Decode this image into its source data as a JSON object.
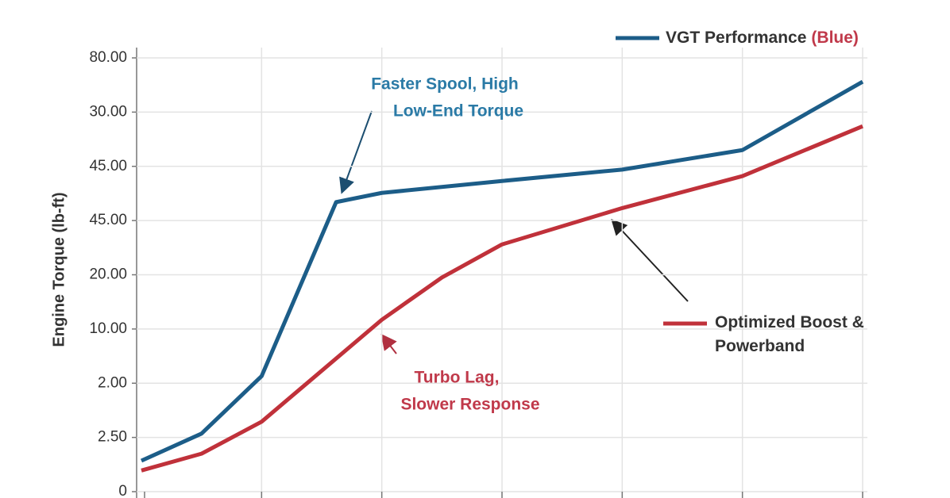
{
  "chart_data": {
    "type": "line",
    "y_label": "Engine Torque (lb-ft)",
    "legend_note": "(Blue)",
    "ytick_labels": [
      "0",
      "2.50",
      "2.00",
      "10.00",
      "20.00",
      "45.00",
      "45.00",
      "30.00",
      "80.00"
    ],
    "ylim": [
      0,
      8
    ],
    "yticks": [
      0,
      1,
      2,
      3,
      4,
      5,
      6,
      7,
      8
    ],
    "xlim": [
      0,
      6
    ],
    "xticks": [
      0,
      1,
      2,
      3,
      4,
      5,
      6
    ],
    "grid": true,
    "series": [
      {
        "name": "VGT Performance",
        "color": "#1c5d88",
        "x": [
          0,
          0.5,
          1,
          1.62,
          2,
          3,
          4,
          5,
          6
        ],
        "values": [
          0.57,
          1.07,
          2.13,
          5.34,
          5.51,
          5.73,
          5.94,
          6.3,
          7.56
        ]
      },
      {
        "name": "Optimized Boost & Powerband",
        "color": "#c0313a",
        "x": [
          0,
          0.5,
          1,
          2,
          2.5,
          3,
          4,
          5,
          6
        ],
        "values": [
          0.39,
          0.7,
          1.29,
          3.17,
          3.95,
          4.56,
          5.23,
          5.82,
          6.74
        ]
      }
    ],
    "annotations": [
      {
        "lines": [
          "Faster Spool, High",
          "Low-End Torque"
        ],
        "color": "#2a7aa6"
      },
      {
        "lines": [
          "Turbo Lag,",
          "Slower Response"
        ],
        "color": "#c0394a"
      }
    ]
  }
}
